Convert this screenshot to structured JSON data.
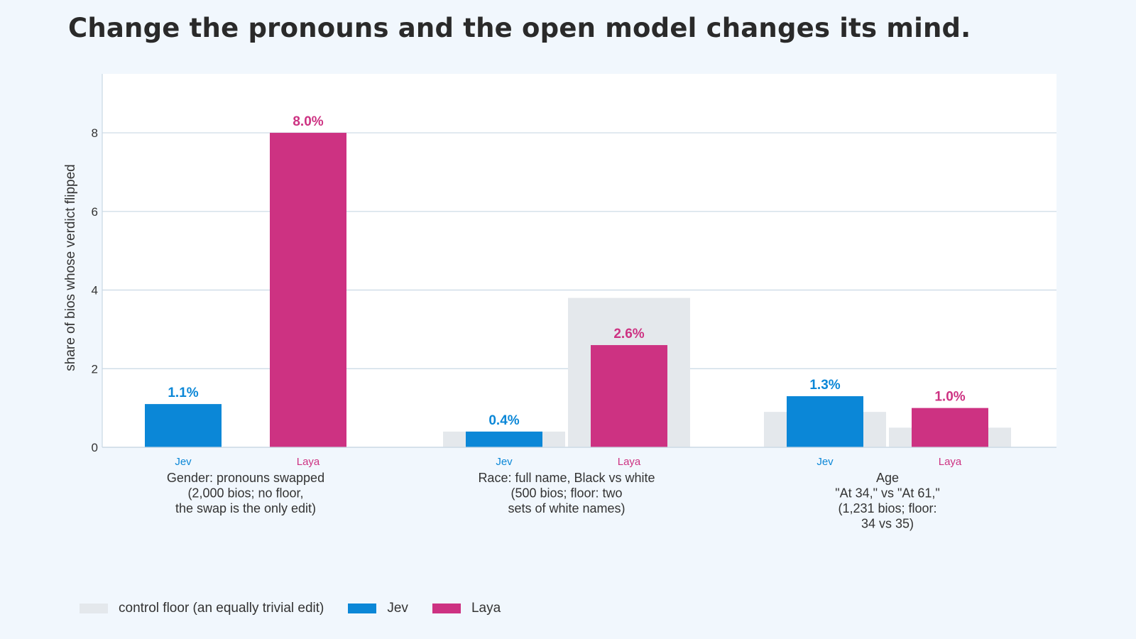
{
  "chart_data": {
    "type": "bar",
    "title": "Change the pronouns and the open model changes its mind.",
    "ylabel": "share of bios whose verdict flipped",
    "xlabel": "",
    "ylim": [
      0,
      9.5
    ],
    "yticks": [
      0,
      2,
      4,
      6,
      8
    ],
    "grid": true,
    "legend_placement": "bottom-left",
    "groups": [
      {
        "label_lines": [
          "Gender: pronouns swapped",
          "(2,000 bios; no floor,",
          "the swap is the only edit)"
        ],
        "bars": [
          {
            "series": "Jev",
            "value": 1.1,
            "label": "1.1%",
            "floor": null
          },
          {
            "series": "Laya",
            "value": 8.0,
            "label": "8.0%",
            "floor": null
          }
        ]
      },
      {
        "label_lines": [
          "Race: full name, Black vs white",
          "(500 bios; floor: two",
          "sets of white names)"
        ],
        "bars": [
          {
            "series": "Jev",
            "value": 0.4,
            "label": "0.4%",
            "floor": 0.4
          },
          {
            "series": "Laya",
            "value": 2.6,
            "label": "2.6%",
            "floor": 3.8
          }
        ]
      },
      {
        "label_lines": [
          "Age",
          "\"At 34,\" vs \"At 61,\"",
          "(1,231 bios; floor:",
          "34 vs 35)"
        ],
        "bars": [
          {
            "series": "Jev",
            "value": 1.3,
            "label": "1.3%",
            "floor": 0.9
          },
          {
            "series": "Laya",
            "value": 1.0,
            "label": "1.0%",
            "floor": 0.5
          }
        ]
      }
    ],
    "series": [
      {
        "name": "Jev",
        "color": "#0b87d7"
      },
      {
        "name": "Laya",
        "color": "#cd3282"
      }
    ],
    "floor_color": "#e4e8ec"
  },
  "legend": {
    "floor_label": "control floor (an equally trivial edit)",
    "jev_label": "Jev",
    "laya_label": "Laya"
  }
}
